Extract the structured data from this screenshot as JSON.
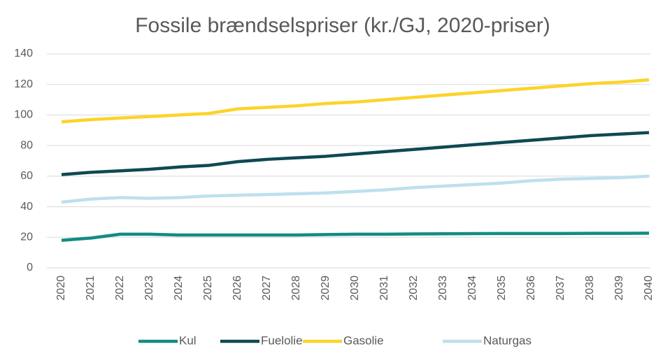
{
  "chart_data": {
    "type": "line",
    "title": "Fossile brændselspriser (kr./GJ, 2020-priser)",
    "categories": [
      "2020",
      "2021",
      "2022",
      "2023",
      "2024",
      "2025",
      "2026",
      "2027",
      "2028",
      "2029",
      "2030",
      "2031",
      "2032",
      "2033",
      "2034",
      "2035",
      "2036",
      "2037",
      "2038",
      "2039",
      "2040"
    ],
    "series": [
      {
        "name": "Kul",
        "color": "#138c84",
        "values": [
          18,
          19.5,
          22,
          22,
          21.5,
          21.5,
          21.5,
          21.5,
          21.5,
          21.8,
          22,
          22,
          22.2,
          22.3,
          22.4,
          22.5,
          22.5,
          22.5,
          22.6,
          22.6,
          22.7
        ]
      },
      {
        "name": "Fuelolie",
        "color": "#0e4a52",
        "values": [
          61,
          62.5,
          63.5,
          64.5,
          66,
          67,
          69.5,
          71,
          72,
          73,
          74.5,
          76,
          77.5,
          79,
          80.5,
          82,
          83.5,
          85,
          86.5,
          87.5,
          88.5
        ]
      },
      {
        "name": "Gasolie",
        "color": "#fdd32a",
        "values": [
          95.5,
          97,
          98,
          99,
          100,
          101,
          104,
          105,
          106,
          107.5,
          108.5,
          110,
          111.5,
          113,
          114.5,
          116,
          117.5,
          119,
          120.5,
          121.5,
          123
        ]
      },
      {
        "name": "Naturgas",
        "color": "#bde0ee",
        "values": [
          43,
          45,
          46,
          45.5,
          46,
          47,
          47.5,
          48,
          48.5,
          49,
          50,
          51,
          52.5,
          53.5,
          54.5,
          55.5,
          57,
          58,
          58.5,
          59,
          60
        ]
      }
    ],
    "ylim": [
      0,
      140
    ],
    "yticks": [
      0,
      20,
      40,
      60,
      80,
      100,
      120,
      140
    ],
    "grid": true,
    "legend": "bottom"
  }
}
